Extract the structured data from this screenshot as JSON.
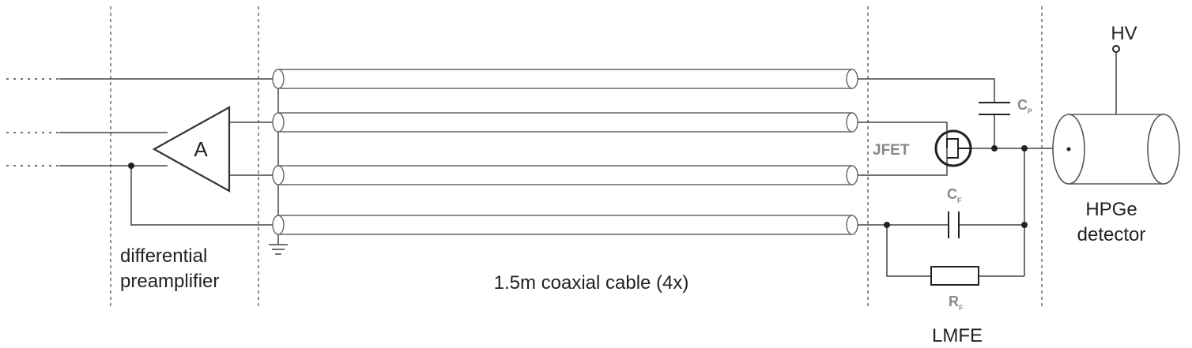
{
  "labels": {
    "amplifier": "A",
    "jfet": "JFET",
    "cp_main": "C",
    "cp_sub": "P",
    "cf_main": "C",
    "cf_sub": "F",
    "rf_main": "R",
    "rf_sub": "F",
    "hv": "HV",
    "detector_line1": "HPGe",
    "detector_line2": "detector",
    "preamp_line1": "differential",
    "preamp_line2": "preamplifier",
    "cable": "1.5m coaxial cable (4x)",
    "lmfe": "LMFE"
  },
  "colors": {
    "wire": "#444444",
    "cable": "#666666",
    "divider": "#555555",
    "text": "#222222",
    "component_label": "#888888"
  }
}
